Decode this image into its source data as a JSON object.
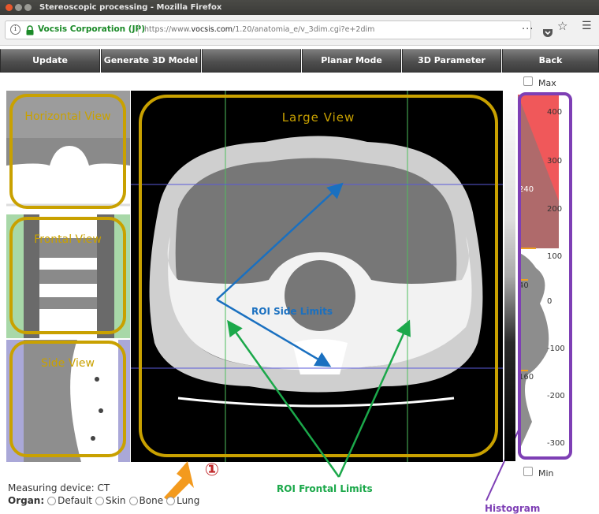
{
  "window": {
    "title": "Stereoscopic processing - Mozilla Firefox"
  },
  "address_bar": {
    "site_identity": "Vocsis Corporation (JP)",
    "url_prefix": "https://www.",
    "url_domain": "vocsis.com",
    "url_path": "/1.20/anatomia_e/v_3dim.cgi?e+2dim"
  },
  "icons": {
    "info": "info-icon",
    "lock": "lock-icon",
    "more": "more-icon",
    "pocket": "pocket-icon",
    "bookmark": "bookmark-star-icon",
    "menu": "hamburger-menu-icon",
    "pointer_arrow": "orange-arrow-icon"
  },
  "toolbar": {
    "buttons": [
      "Update",
      "Generate 3D Model",
      "",
      "Planar Mode",
      "3D Parameter",
      "Back"
    ]
  },
  "views": {
    "horizontal": "Horizontal View",
    "frontal": "Frontal View",
    "side": "Side View",
    "large": "Large View"
  },
  "annotations": {
    "roi_side": "ROI Side Limits",
    "roi_frontal": "ROI Frontal Limits",
    "histogram": "Histogram",
    "step_marker": "①"
  },
  "histogram": {
    "max_label": "Max",
    "min_label": "Min",
    "scale_labels": [
      "400",
      "300",
      "200",
      "100",
      "0",
      "-100",
      "-200",
      "-300"
    ],
    "window_labels": [
      "240",
      "40",
      "160"
    ]
  },
  "controls": {
    "measuring_device": "Measuring device: CT",
    "organ_label": "Organ:",
    "organ_options": [
      "Default",
      "Skin",
      "Bone",
      "Lung"
    ]
  },
  "colors": {
    "overlay_gold": "#c9a100",
    "roi_blue": "#1a70c0",
    "roi_green": "#1ba84a",
    "histogram_purple": "#7e3fb5",
    "window_red": "#f0585a",
    "marker_red": "#c0282a"
  }
}
